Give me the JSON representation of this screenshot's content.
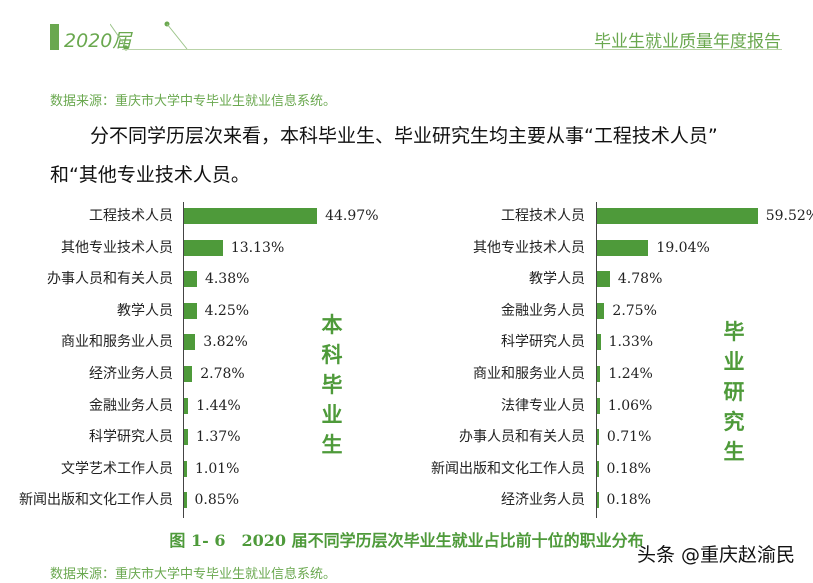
{
  "header": {
    "year": "2020届",
    "title": "毕业生就业质量年度报告"
  },
  "source_top": "数据来源：重庆市大学中专毕业生就业信息系统。",
  "paragraph": [
    "分不同学历层次来看，本科毕业生、毕业研究生均主要从事“工程技术人员”",
    "和“其他专业技术人员。"
  ],
  "chart_data": [
    {
      "type": "bar",
      "orientation": "horizontal",
      "series_label": "本科毕业生",
      "unit": "%",
      "categories": [
        "工程技术人员",
        "其他专业技术人员",
        "办事人员和有关人员",
        "教学人员",
        "商业和服务业人员",
        "经济业务人员",
        "金融业务人员",
        "科学研究人员",
        "文学艺术工作人员",
        "新闻出版和文化工作人员"
      ],
      "values": [
        44.97,
        13.13,
        4.38,
        4.25,
        3.82,
        2.78,
        1.44,
        1.37,
        1.01,
        0.85
      ],
      "labels": [
        "44.97%",
        "13.13%",
        "4.38%",
        "4.25%",
        "3.82%",
        "2.78%",
        "1.44%",
        "1.37%",
        "1.01%",
        "0.85%"
      ]
    },
    {
      "type": "bar",
      "orientation": "horizontal",
      "series_label": "毕业研究生",
      "unit": "%",
      "categories": [
        "工程技术人员",
        "其他专业技术人员",
        "教学人员",
        "金融业务人员",
        "科学研究人员",
        "商业和服务业人员",
        "法律专业人员",
        "办事人员和有关人员",
        "新闻出版和文化工作人员",
        "经济业务人员"
      ],
      "values": [
        59.52,
        19.04,
        4.78,
        2.75,
        1.33,
        1.24,
        1.06,
        0.71,
        0.18,
        0.18
      ],
      "labels": [
        "59.52%",
        "19.04%",
        "4.78%",
        "2.75%",
        "1.33%",
        "1.24%",
        "1.06%",
        "0.71%",
        "0.18%",
        "0.18%"
      ]
    }
  ],
  "caption": "图 1- 6　2020 届不同学历层次毕业生就业占比前十位的职业分布",
  "source_bottom": "数据来源：重庆市大学中专毕业生就业信息系统。",
  "watermark": "头条 @重庆赵渝民",
  "colors": {
    "accent": "#6aa84f",
    "bar": "#4e9a3a"
  }
}
